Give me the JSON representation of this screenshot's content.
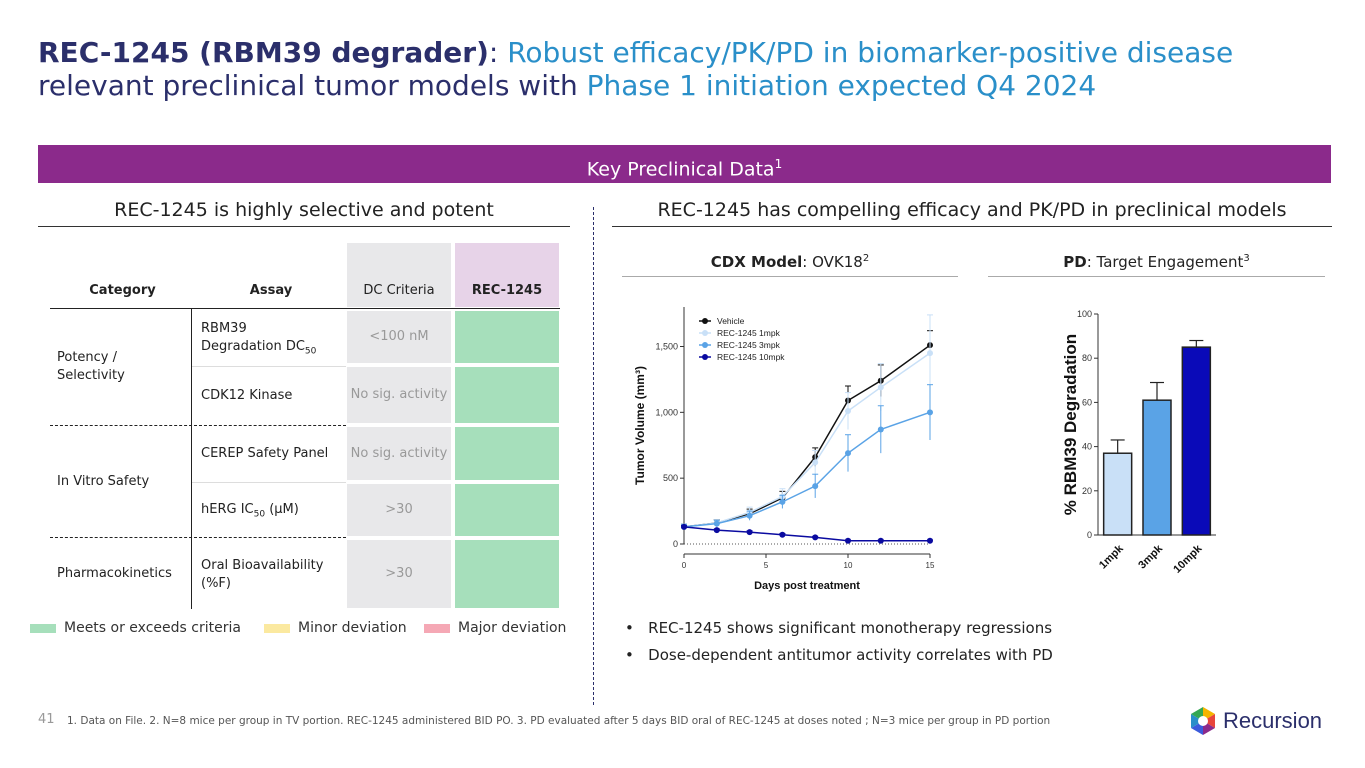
{
  "title": {
    "bold": "REC-1245 (RBM39 degrader)",
    "colon": ": ",
    "blue1": "Robust efficacy/PK/PD in biomarker-positive disease",
    "dark2": "relevant preclinical tumor models with ",
    "blue2": "Phase 1 initiation expected Q4 2024"
  },
  "banner": {
    "label": "Key Preclinical Data",
    "sup": "1"
  },
  "left": {
    "heading": "REC-1245 is highly selective and potent",
    "table": {
      "headers": [
        "Category",
        "Assay",
        "DC Criteria",
        "REC-1245"
      ],
      "cat_potency": "Potency / Selectivity",
      "cat_safety": "In Vitro Safety",
      "cat_pk": "Pharmacokinetics",
      "assay_rbm39_a": "RBM39",
      "assay_rbm39_b": "Degradation DC",
      "assay_rbm39_sub": "50",
      "assay_cdk12": "CDK12 Kinase",
      "assay_cerep": "CEREP Safety Panel",
      "assay_herg_a": "hERG IC",
      "assay_herg_sub": "50",
      "assay_herg_b": " (µM)",
      "assay_oral": "Oral Bioavailability (%F)",
      "dc_rbm39": "<100 nM",
      "dc_cdk12": "No sig. activity",
      "dc_cerep": "No sig. activity",
      "dc_herg": ">30",
      "dc_oral": ">30"
    },
    "legend": {
      "meets": "Meets or exceeds criteria",
      "minor": "Minor deviation",
      "major": "Major deviation",
      "meets_color": "#a6dfbb",
      "minor_color": "#fbe9a0",
      "major_color": "#f5a8b5"
    }
  },
  "right": {
    "heading": "REC-1245 has compelling efficacy and PK/PD in preclinical models",
    "cdx_bold": "CDX Model",
    "cdx_rest": ": OVK18",
    "cdx_sup": "2",
    "pd_bold": "PD",
    "pd_rest": ": Target Engagement",
    "pd_sup": "3",
    "bullets": [
      "REC-1245 shows significant monotherapy regressions",
      "Dose-dependent antitumor activity correlates with PD"
    ]
  },
  "chart_data": [
    {
      "type": "line",
      "title": "CDX Model: OVK18",
      "xlabel": "Days post treatment",
      "ylabel": "Tumor Volume (mm³)",
      "xlim": [
        0,
        15
      ],
      "ylim": [
        0,
        1800
      ],
      "xticks": [
        "0",
        "5",
        "10",
        "15"
      ],
      "yticks": [
        "0",
        "500",
        "1,000",
        "1,500"
      ],
      "x": [
        0,
        2,
        4,
        6,
        8,
        10,
        12,
        15
      ],
      "series": [
        {
          "name": "Vehicle",
          "color": "#111111",
          "values": [
            130,
            160,
            230,
            350,
            660,
            1090,
            1240,
            1510
          ],
          "err": [
            20,
            25,
            35,
            50,
            70,
            110,
            120,
            110
          ]
        },
        {
          "name": "REC-1245 1mpk",
          "color": "#c9e0f7",
          "values": [
            130,
            160,
            240,
            360,
            620,
            1010,
            1190,
            1450
          ],
          "err": [
            20,
            25,
            40,
            60,
            90,
            140,
            180,
            290
          ]
        },
        {
          "name": "REC-1245 3mpk",
          "color": "#5aa3e6",
          "values": [
            130,
            155,
            215,
            320,
            440,
            690,
            870,
            1000
          ],
          "err": [
            20,
            25,
            35,
            50,
            90,
            140,
            180,
            210
          ]
        },
        {
          "name": "REC-1245 10mpk",
          "color": "#0a0aa0",
          "values": [
            130,
            105,
            90,
            70,
            50,
            25,
            25,
            25
          ],
          "err": [
            10,
            10,
            10,
            10,
            8,
            6,
            6,
            6
          ]
        }
      ]
    },
    {
      "type": "bar",
      "title": "PD: Target Engagement",
      "ylabel": "% RBM39 Degradation",
      "ylim": [
        0,
        100
      ],
      "yticks": [
        "0",
        "20",
        "40",
        "60",
        "80",
        "100"
      ],
      "categories": [
        "1mpk",
        "3mpk",
        "10mpk"
      ],
      "values": [
        37,
        61,
        85
      ],
      "err": [
        6,
        8,
        3
      ],
      "colors": [
        "#c9e0f7",
        "#5aa3e6",
        "#0a0ab8"
      ]
    }
  ],
  "footer": {
    "page": "41",
    "notes": "1. Data on File.   2. N=8 mice per group in TV portion. REC-1245 administered BID PO.   3. PD evaluated after 5 days BID oral of REC-1245 at doses noted ; N=3 mice per group in PD portion"
  },
  "logo": {
    "text": "Recursion"
  }
}
